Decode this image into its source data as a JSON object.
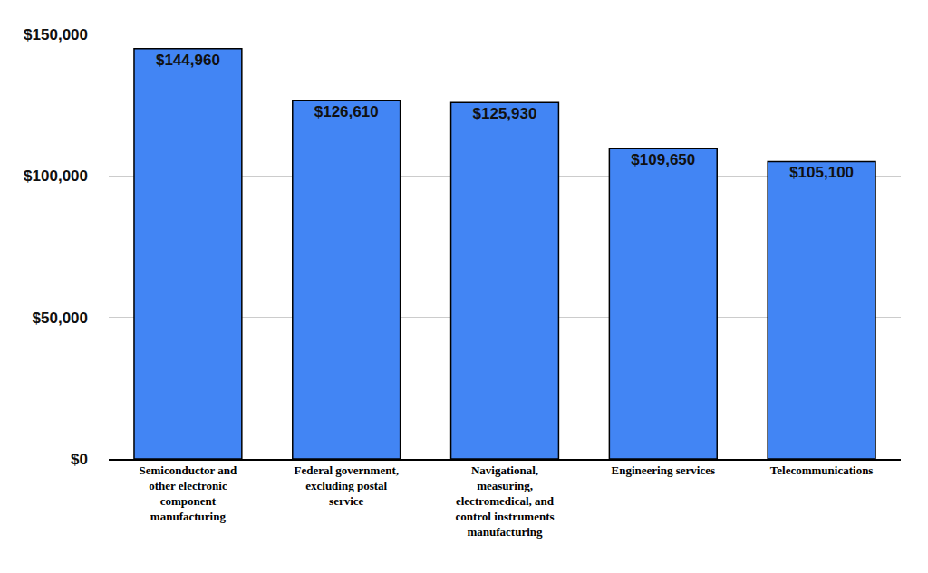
{
  "chart_data": {
    "type": "bar",
    "categories": [
      "Semiconductor and other electronic component manufacturing",
      "Federal government, excluding postal service",
      "Navigational, measuring, electromedical, and control instruments manufacturing",
      "Engineering services",
      "Telecommunications"
    ],
    "values": [
      144960,
      126610,
      125930,
      109650,
      105100
    ],
    "value_labels": [
      "$144,960",
      "$126,610",
      "$125,930",
      "$109,650",
      "$105,100"
    ],
    "data_labels": true,
    "color": "#4285f4",
    "ylim": [
      0,
      150000
    ],
    "yticks": [
      {
        "value": 0,
        "label": "$0"
      },
      {
        "value": 50000,
        "label": "$50,000"
      },
      {
        "value": 100000,
        "label": "$100,000"
      },
      {
        "value": 150000,
        "label": "$150,000"
      }
    ],
    "grid": true
  }
}
